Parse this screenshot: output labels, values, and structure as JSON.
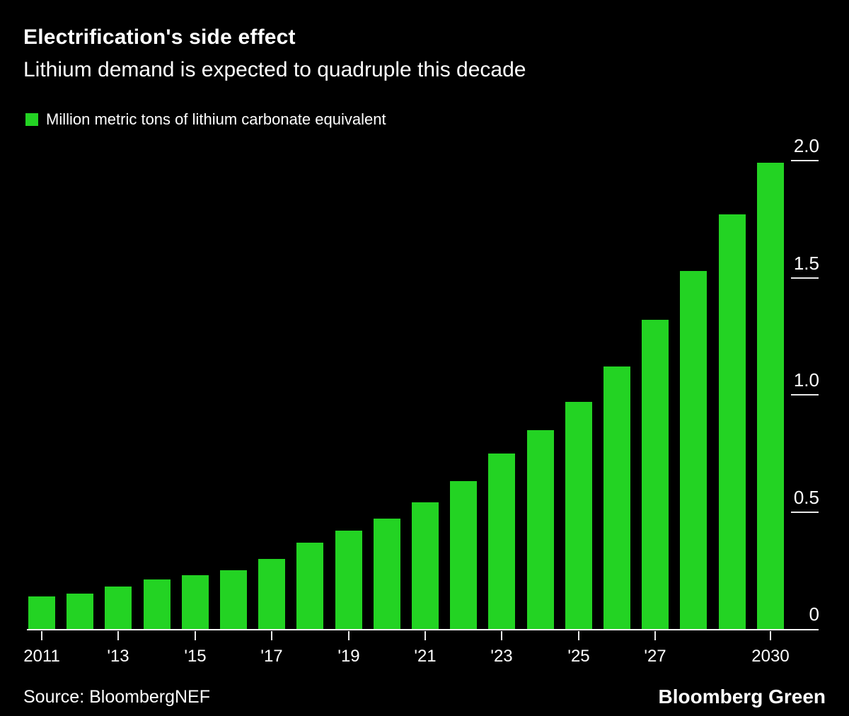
{
  "header": {
    "title": "Electrification's side effect",
    "subtitle": "Lithium demand is expected to quadruple this decade"
  },
  "legend": {
    "label": "Million metric tons of lithium carbonate equivalent",
    "swatch_color": "#23d323"
  },
  "chart_data": {
    "type": "bar",
    "title": "Electrification's side effect",
    "subtitle": "Lithium demand is expected to quadruple this decade",
    "series_label": "Million metric tons of lithium carbonate equivalent",
    "bar_color": "#23d323",
    "background_color": "#000000",
    "categories": [
      2011,
      2012,
      2013,
      2014,
      2015,
      2016,
      2017,
      2018,
      2019,
      2020,
      2021,
      2022,
      2023,
      2024,
      2025,
      2026,
      2027,
      2028,
      2029,
      2030
    ],
    "values": [
      0.14,
      0.15,
      0.18,
      0.21,
      0.23,
      0.25,
      0.3,
      0.37,
      0.42,
      0.47,
      0.54,
      0.63,
      0.75,
      0.85,
      0.97,
      1.12,
      1.32,
      1.53,
      1.77,
      1.99
    ],
    "x_tick_labels": [
      {
        "year": 2011,
        "label": "2011"
      },
      {
        "year": 2013,
        "label": "'13"
      },
      {
        "year": 2015,
        "label": "'15"
      },
      {
        "year": 2017,
        "label": "'17"
      },
      {
        "year": 2019,
        "label": "'19"
      },
      {
        "year": 2021,
        "label": "'21"
      },
      {
        "year": 2023,
        "label": "'23"
      },
      {
        "year": 2025,
        "label": "'25"
      },
      {
        "year": 2027,
        "label": "'27"
      },
      {
        "year": 2030,
        "label": "2030"
      }
    ],
    "y_ticks": [
      {
        "value": 0,
        "label": "0",
        "tick_line": false
      },
      {
        "value": 0.5,
        "label": "0.5",
        "tick_line": true
      },
      {
        "value": 1.0,
        "label": "1.0",
        "tick_line": true
      },
      {
        "value": 1.5,
        "label": "1.5",
        "tick_line": true
      },
      {
        "value": 2.0,
        "label": "2.0",
        "tick_line": true
      }
    ],
    "ylim": [
      0,
      2.0
    ],
    "grid": false,
    "legend_position": "top-left",
    "y_axis_side": "right"
  },
  "footer": {
    "source": "Source: BloombergNEF",
    "brand": "Bloomberg Green"
  }
}
